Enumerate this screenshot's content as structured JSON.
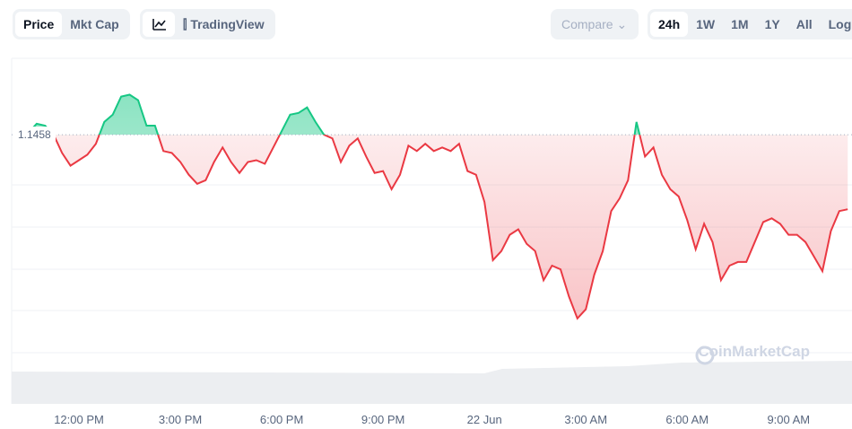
{
  "toolbar": {
    "metric_tabs": [
      "Price",
      "Mkt Cap"
    ],
    "chart_tools": [
      "TradingView"
    ],
    "compare": "Compare",
    "ranges": [
      "24h",
      "1W",
      "1M",
      "1Y",
      "All",
      "Log"
    ]
  },
  "watermark": "CoinMarketCap",
  "chart_data": {
    "type": "line",
    "categories": [
      null,
      null,
      null,
      null,
      null,
      null,
      "12:00 PM",
      null,
      null,
      null,
      null,
      null,
      null,
      null,
      null,
      null,
      null,
      null,
      "3:00 PM",
      null,
      null,
      null,
      null,
      null,
      null,
      null,
      null,
      null,
      null,
      null,
      "6:00 PM",
      null,
      null,
      null,
      null,
      null,
      null,
      null,
      null,
      null,
      null,
      null,
      "9:00 PM",
      null,
      null,
      null,
      null,
      null,
      null,
      null,
      null,
      null,
      null,
      null,
      "22 Jun",
      null,
      null,
      null,
      null,
      null,
      null,
      null,
      null,
      null,
      null,
      null,
      "3:00 AM",
      null,
      null,
      null,
      null,
      null,
      null,
      null,
      null,
      null,
      null,
      null,
      "6:00 AM",
      null,
      null,
      null,
      null,
      null,
      null,
      null,
      null,
      null,
      null,
      null,
      "9:00 AM",
      null,
      null,
      null,
      null,
      null,
      null,
      null
    ],
    "values": [
      1.1459,
      1.1464,
      1.1463,
      1.1458,
      1.1448,
      1.1441,
      1.1444,
      1.1447,
      1.1453,
      1.1465,
      1.1469,
      1.1479,
      1.148,
      1.1477,
      1.1463,
      1.1463,
      1.1449,
      1.1448,
      1.1443,
      1.1436,
      1.1431,
      1.1433,
      1.1443,
      1.1451,
      1.1443,
      1.1437,
      1.1443,
      1.1444,
      1.1442,
      1.1451,
      1.146,
      1.1469,
      1.147,
      1.1473,
      1.1465,
      1.1458,
      1.1456,
      1.1443,
      1.1452,
      1.1456,
      1.1446,
      1.1437,
      1.1438,
      1.1428,
      1.1436,
      1.1452,
      1.1449,
      1.1453,
      1.1449,
      1.1451,
      1.1449,
      1.1453,
      1.1438,
      1.1436,
      1.1421,
      1.1389,
      1.1394,
      1.1403,
      1.1406,
      1.1398,
      1.1394,
      1.1378,
      1.1386,
      1.1384,
      1.1369,
      1.1357,
      1.1362,
      1.1381,
      1.1394,
      1.1416,
      1.1423,
      1.1433,
      1.1465,
      1.1446,
      1.1451,
      1.1436,
      1.1428,
      1.1424,
      1.1411,
      1.1395,
      1.1409,
      1.1399,
      1.1378,
      1.1386,
      1.1388,
      1.1388,
      1.1399,
      1.141,
      1.1412,
      1.1409,
      1.1403,
      1.1403,
      1.1399,
      1.1391,
      1.1383,
      1.1405,
      1.1416,
      1.1417
    ],
    "baseline": 1.1458,
    "ylim": [
      1.131,
      1.15
    ],
    "color_up": "#16c784",
    "color_down": "#ea3943"
  }
}
